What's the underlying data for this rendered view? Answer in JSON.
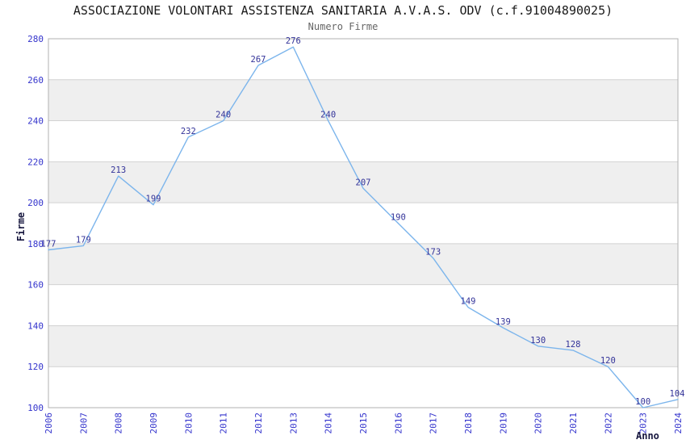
{
  "chart_data": {
    "type": "line",
    "title": "ASSOCIAZIONE VOLONTARI ASSISTENZA SANITARIA A.V.A.S. ODV (c.f.91004890025)",
    "subtitle": "Numero Firme",
    "xlabel": "Anno",
    "ylabel": "Firme",
    "categories": [
      "2006",
      "2007",
      "2008",
      "2009",
      "2010",
      "2011",
      "2012",
      "2013",
      "2014",
      "2015",
      "2016",
      "2017",
      "2018",
      "2019",
      "2020",
      "2021",
      "2022",
      "2023",
      "2024"
    ],
    "values": [
      177,
      179,
      213,
      199,
      232,
      240,
      267,
      276,
      240,
      207,
      190,
      173,
      149,
      139,
      130,
      128,
      120,
      100,
      104
    ],
    "ylim": [
      100,
      280
    ],
    "ytick_step": 20,
    "grid": "horizontal",
    "alternating_bands": true,
    "legend": "none",
    "colors": {
      "line": "#7cb5ec",
      "tick_label": "#3333cc",
      "data_label": "#333399",
      "band": "#efefef",
      "gridline": "#d2d2d2",
      "border": "#b0b0b0",
      "title": "#1a1a1a",
      "subtitle": "#666666",
      "axis_title": "#16163e"
    }
  }
}
